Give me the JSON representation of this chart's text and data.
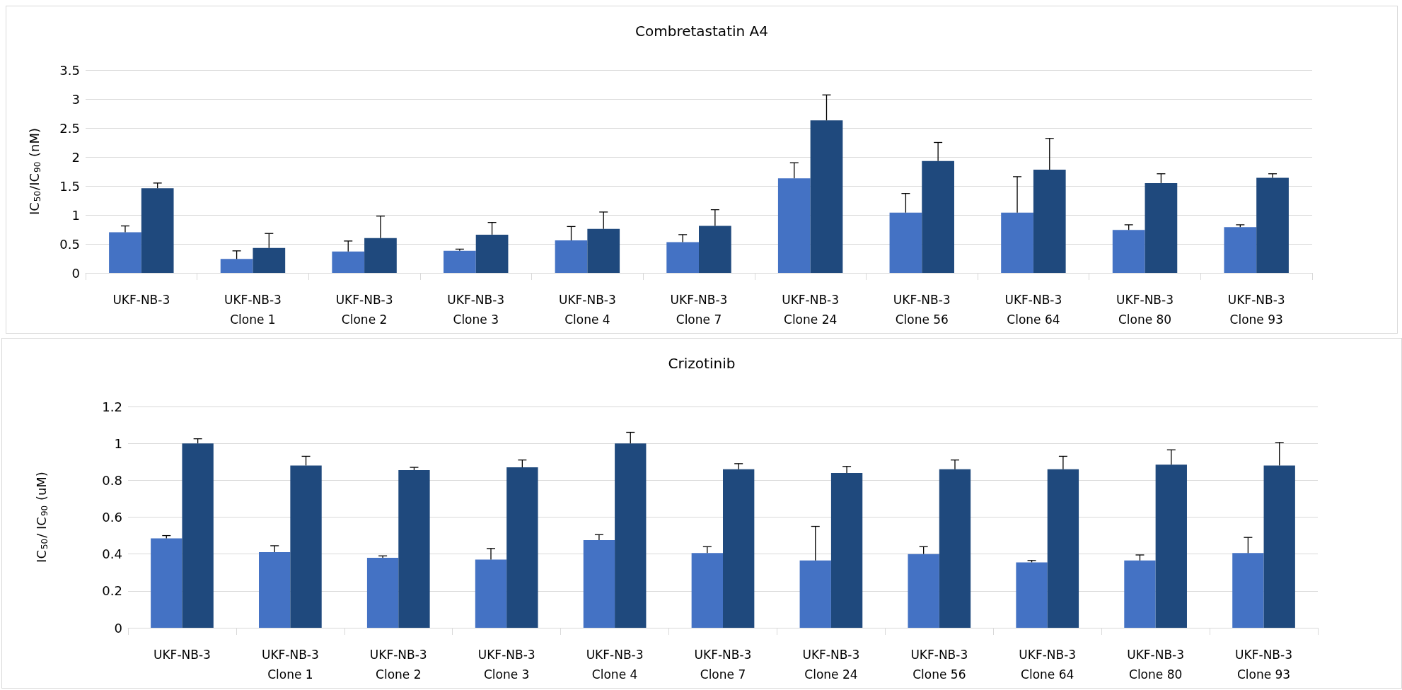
{
  "chart_data": [
    {
      "type": "bar",
      "title": "Combretastatin A4",
      "ylabel": "IC$_{50}$/IC$_{90}$ (nM)",
      "categories": [
        "UKF-NB-3",
        "UKF-NB-3\nClone 1",
        "UKF-NB-3\nClone 2",
        "UKF-NB-3\nClone 3",
        "UKF-NB-3\nClone 4",
        "UKF-NB-3\nClone 7",
        "UKF-NB-3\nClone 24",
        "UKF-NB-3\nClone 56",
        "UKF-NB-3\nClone 64",
        "UKF-NB-3\nClone 80",
        "UKF-NB-3\nClone 93"
      ],
      "series": [
        {
          "color": "#4472c4",
          "values": [
            0.7,
            0.24,
            0.37,
            0.38,
            0.56,
            0.53,
            1.63,
            1.04,
            1.04,
            0.74,
            0.79
          ],
          "errors": [
            [
              0.7,
              0.81
            ],
            [
              0.24,
              0.38
            ],
            [
              0.37,
              0.55
            ],
            [
              0.38,
              0.41
            ],
            [
              0.56,
              0.8
            ],
            [
              0.53,
              0.66
            ],
            [
              1.63,
              1.9
            ],
            [
              1.04,
              1.37
            ],
            [
              1.04,
              1.66
            ],
            [
              0.74,
              0.83
            ],
            [
              0.79,
              0.83
            ]
          ]
        },
        {
          "color": "#1f497d",
          "values": [
            1.46,
            0.43,
            0.6,
            0.66,
            0.76,
            0.81,
            2.63,
            1.93,
            1.78,
            1.55,
            1.64
          ],
          "errors": [
            [
              1.46,
              1.55
            ],
            [
              0.43,
              0.68
            ],
            [
              0.6,
              0.98
            ],
            [
              0.66,
              0.87
            ],
            [
              0.76,
              1.05
            ],
            [
              0.81,
              1.09
            ],
            [
              2.63,
              3.07
            ],
            [
              1.93,
              2.25
            ],
            [
              1.78,
              2.32
            ],
            [
              1.55,
              1.71
            ],
            [
              1.64,
              1.71
            ]
          ]
        }
      ],
      "ylim": [
        0,
        3.5
      ],
      "yticks": [
        0,
        0.5,
        1,
        1.5,
        2,
        2.5,
        3,
        3.5
      ],
      "grid": "y"
    },
    {
      "type": "bar",
      "title": "Crizotinib",
      "ylabel": "IC$_{50}$/ IC$_{90}$ (uM)",
      "categories": [
        "UKF-NB-3",
        "UKF-NB-3\nClone 1",
        "UKF-NB-3\nClone 2",
        "UKF-NB-3\nClone 3",
        "UKF-NB-3\nClone 4",
        "UKF-NB-3\nClone 7",
        "UKF-NB-3\nClone 24",
        "UKF-NB-3\nClone 56",
        "UKF-NB-3\nClone 64",
        "UKF-NB-3\nClone 80",
        "UKF-NB-3\nClone 93"
      ],
      "series": [
        {
          "color": "#4472c4",
          "values": [
            0.485,
            0.41,
            0.38,
            0.37,
            0.475,
            0.405,
            0.365,
            0.4,
            0.355,
            0.365,
            0.405
          ],
          "errors": [
            [
              0.485,
              0.5
            ],
            [
              0.41,
              0.445
            ],
            [
              0.38,
              0.39
            ],
            [
              0.37,
              0.43
            ],
            [
              0.475,
              0.505
            ],
            [
              0.405,
              0.44
            ],
            [
              0.365,
              0.55
            ],
            [
              0.4,
              0.44
            ],
            [
              0.355,
              0.365
            ],
            [
              0.365,
              0.395
            ],
            [
              0.405,
              0.49
            ]
          ]
        },
        {
          "color": "#1f497d",
          "values": [
            1.0,
            0.88,
            0.855,
            0.87,
            1.0,
            0.86,
            0.84,
            0.86,
            0.86,
            0.885,
            0.88
          ],
          "errors": [
            [
              1.0,
              1.025
            ],
            [
              0.88,
              0.93
            ],
            [
              0.855,
              0.87
            ],
            [
              0.87,
              0.91
            ],
            [
              1.0,
              1.06
            ],
            [
              0.86,
              0.89
            ],
            [
              0.84,
              0.875
            ],
            [
              0.86,
              0.91
            ],
            [
              0.86,
              0.93
            ],
            [
              0.885,
              0.965
            ],
            [
              0.88,
              1.005
            ]
          ]
        }
      ],
      "ylim": [
        0,
        1.2
      ],
      "yticks": [
        0,
        0.2,
        0.4,
        0.6,
        0.8,
        1,
        1.2
      ],
      "grid": "y"
    }
  ]
}
